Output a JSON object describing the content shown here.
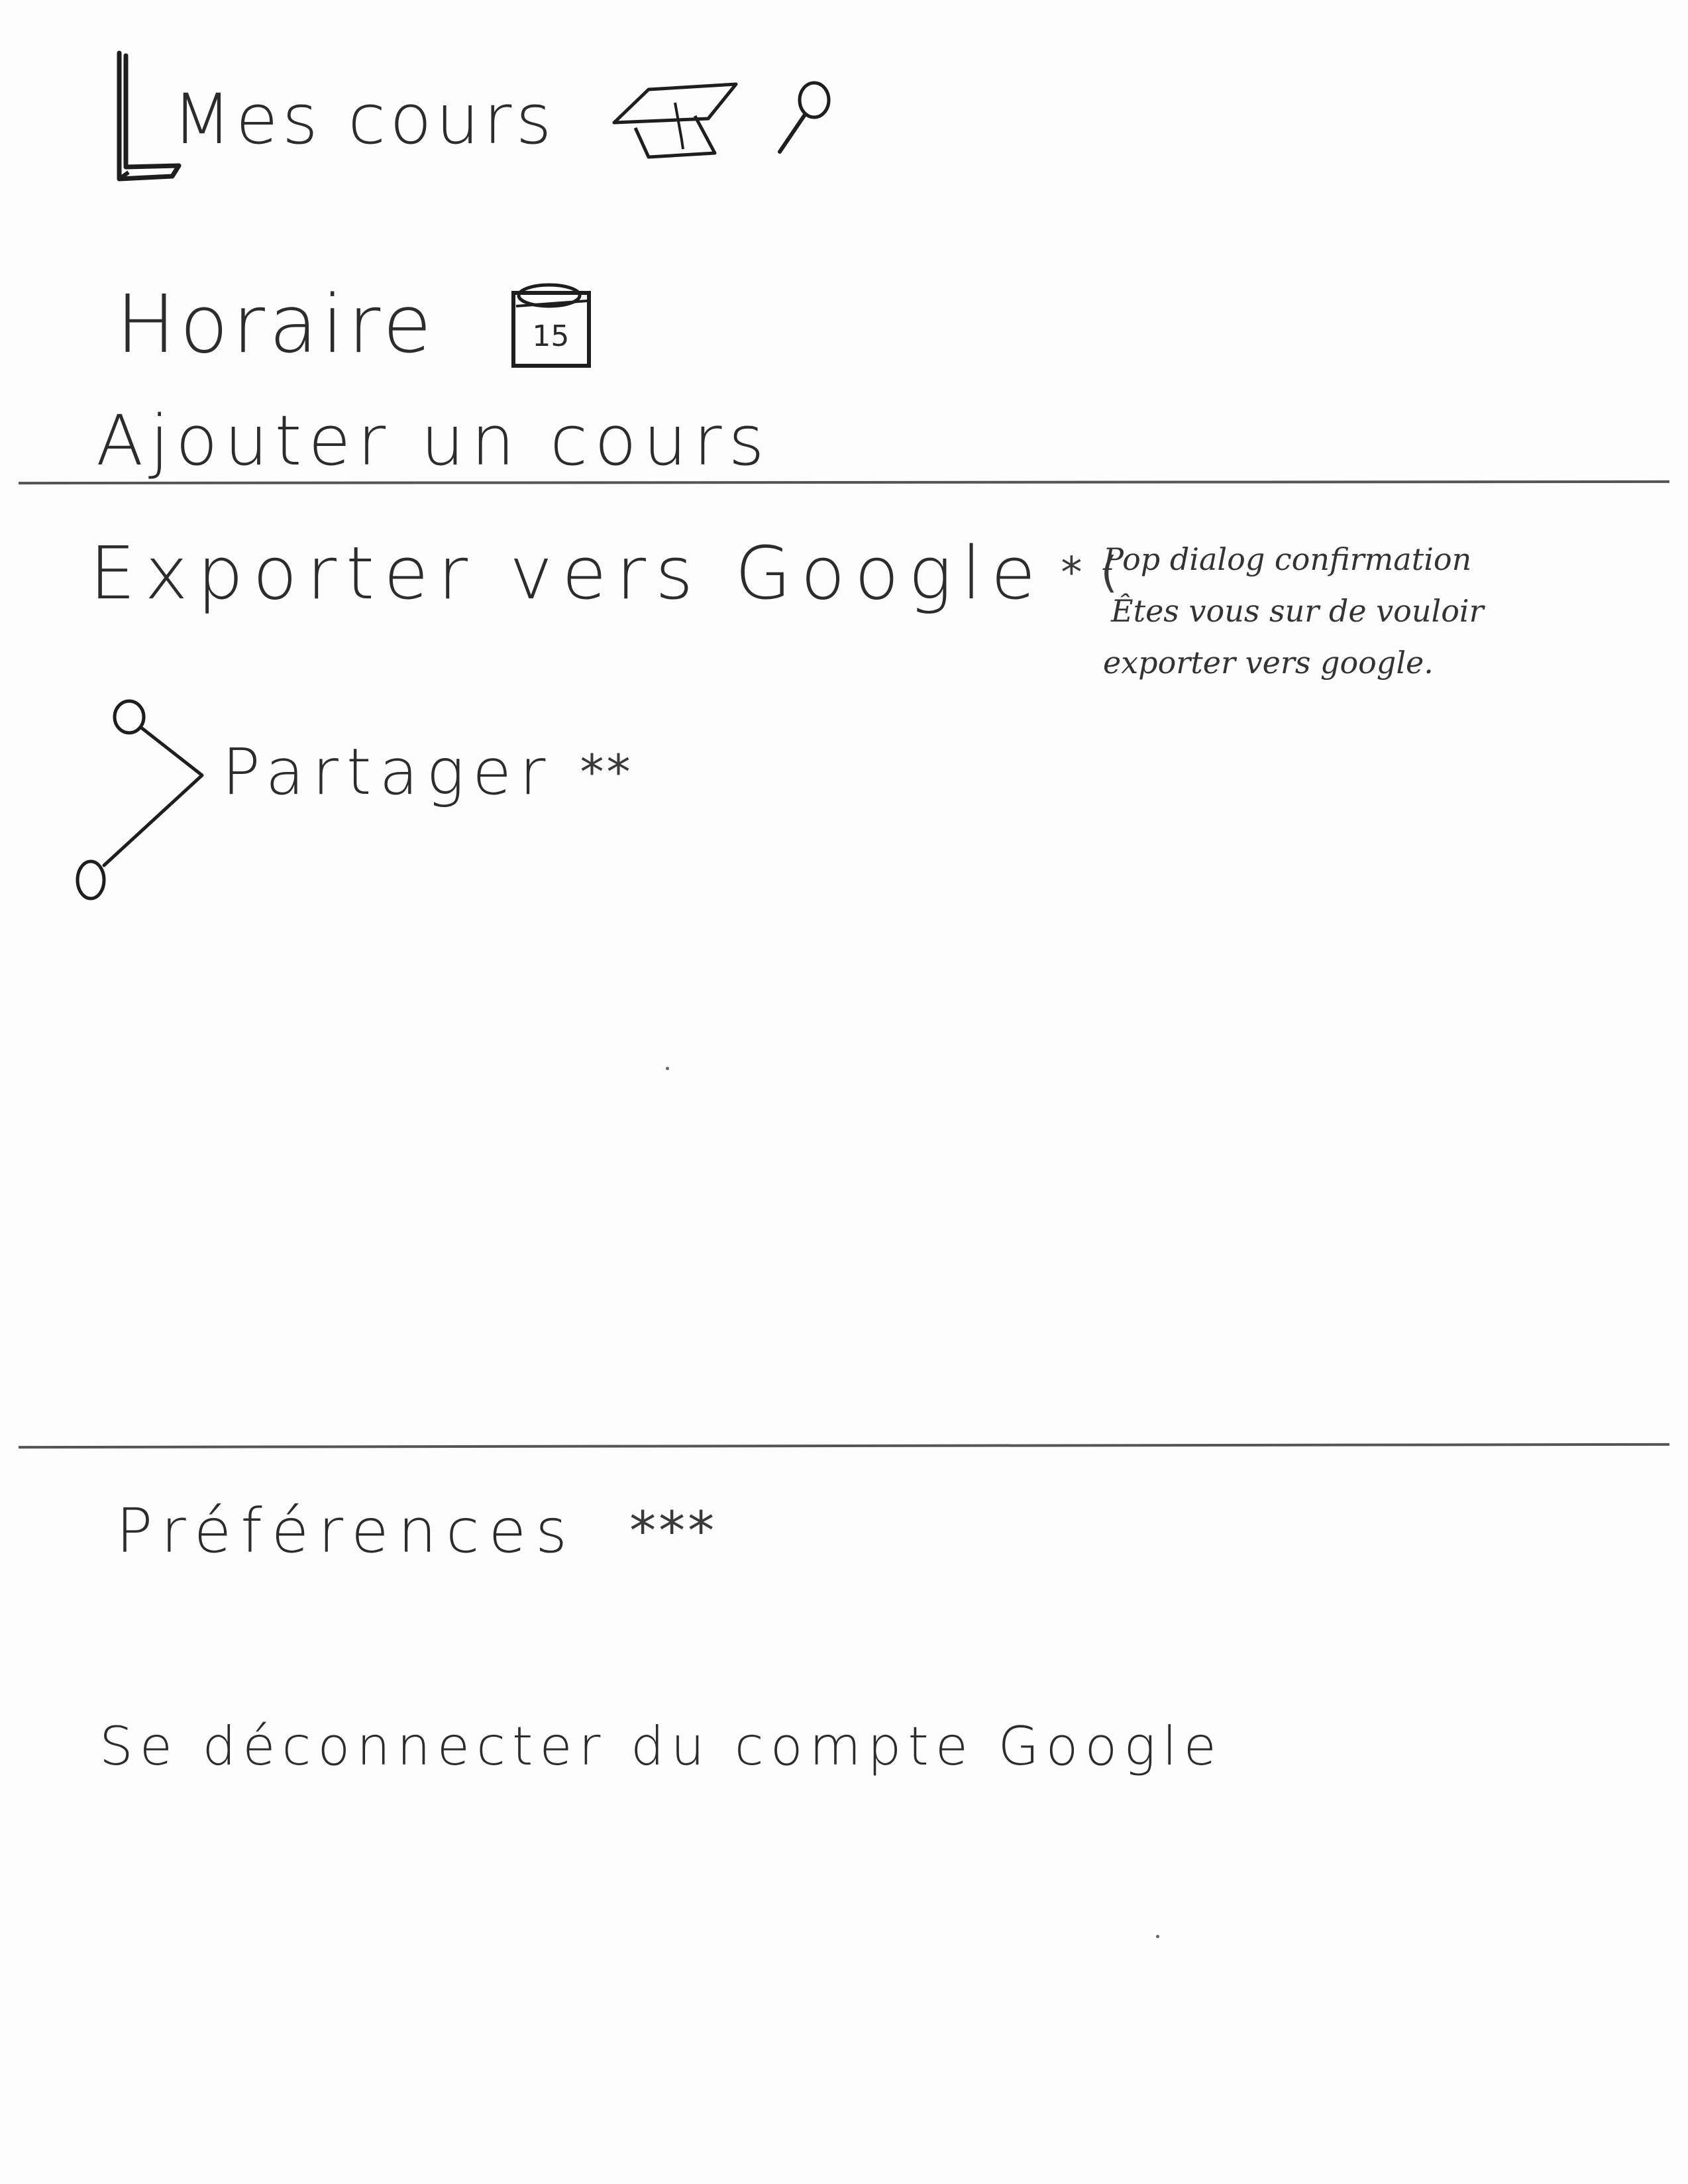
{
  "menu": {
    "mes_cours": {
      "label": "Mes cours",
      "icons": [
        "book-icon",
        "graduation-cap-icon",
        "search-icon"
      ]
    },
    "horaire": {
      "label": "Horaire",
      "icon": "calendar-icon",
      "calendar_day": "15"
    },
    "ajouter_cours": {
      "label": "Ajouter un cours"
    },
    "exporter": {
      "label": "Exporter vers Google",
      "marker": "* (",
      "note_lines": [
        "Pop dialog confirmation",
        "Êtes vous sur de vouloir",
        "exporter vers google."
      ]
    },
    "partager": {
      "label": "Partager",
      "marker": "**",
      "icon": "share-icon"
    },
    "preferences": {
      "label": "Préférences",
      "marker": "***"
    },
    "deconnecter": {
      "label": "Se déconnecter du compte Google"
    }
  },
  "colors": {
    "ink": "#2c2c2c",
    "paper": "#fdfdfd",
    "rule": "#555555"
  }
}
